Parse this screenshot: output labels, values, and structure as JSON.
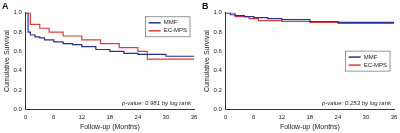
{
  "chart_data": [
    {
      "type": "line",
      "title": "A",
      "x_label": "Follow-up (Months)",
      "y_label": "Cumulative Survival",
      "annotation": "p-value: 0.981 by log rank",
      "xlim": [
        0,
        36
      ],
      "xticks": [
        0,
        6,
        12,
        18,
        24,
        30,
        36
      ],
      "ylim": [
        0,
        1
      ],
      "yticks": [
        {
          "value": 0,
          "label": "0.0"
        },
        {
          "value": 0.2,
          "label": "0.2"
        },
        {
          "value": 0.4,
          "label": "0.4"
        },
        {
          "value": 0.6,
          "label": "0.6"
        },
        {
          "value": 0.8,
          "label": "0.8"
        },
        {
          "value": 1,
          "label": "1.0"
        }
      ],
      "grid": false,
      "legend": "top right",
      "line_style": "steps",
      "series": [
        {
          "name": "MMF",
          "color": "#2b2f8f",
          "x": [
            0,
            0.5,
            1,
            2,
            3,
            4,
            6,
            8,
            10,
            12,
            15,
            18,
            21,
            24,
            30,
            36
          ],
          "values": [
            1,
            0.8,
            0.77,
            0.75,
            0.74,
            0.72,
            0.7,
            0.68,
            0.67,
            0.65,
            0.62,
            0.6,
            0.58,
            0.57,
            0.55,
            0.55
          ]
        },
        {
          "name": "EC-MPS",
          "color": "#e03b3b",
          "x": [
            0,
            1,
            3,
            5,
            8,
            12,
            16,
            20,
            24,
            26,
            36
          ],
          "values": [
            1,
            0.88,
            0.84,
            0.8,
            0.76,
            0.72,
            0.68,
            0.64,
            0.6,
            0.52,
            0.52
          ]
        }
      ]
    },
    {
      "type": "line",
      "title": "B",
      "x_label": "Follow-up (Months)",
      "y_label": "Cumulative Survival",
      "annotation": "p-value: 0.253 by log rank",
      "xlim": [
        0,
        36
      ],
      "xticks": [
        0,
        6,
        12,
        18,
        24,
        30,
        36
      ],
      "ylim": [
        0,
        1
      ],
      "yticks": [
        {
          "value": 0,
          "label": "0.0"
        },
        {
          "value": 0.2,
          "label": "0.2"
        },
        {
          "value": 0.4,
          "label": "0.4"
        },
        {
          "value": 0.6,
          "label": "0.6"
        },
        {
          "value": 0.8,
          "label": "0.8"
        },
        {
          "value": 1,
          "label": "1.0"
        }
      ],
      "grid": false,
      "legend": "center right",
      "line_style": "steps",
      "series": [
        {
          "name": "MMF",
          "color": "#2b2f8f",
          "x": [
            0,
            1,
            2,
            4,
            6,
            9,
            12,
            18,
            24,
            36
          ],
          "values": [
            1,
            0.98,
            0.97,
            0.96,
            0.95,
            0.94,
            0.93,
            0.91,
            0.9,
            0.9
          ]
        },
        {
          "name": "EC-MPS",
          "color": "#e03b3b",
          "x": [
            0,
            2,
            5,
            7,
            12,
            18,
            24,
            36
          ],
          "values": [
            1,
            0.96,
            0.94,
            0.92,
            0.91,
            0.9,
            0.89,
            0.89
          ]
        }
      ]
    }
  ]
}
